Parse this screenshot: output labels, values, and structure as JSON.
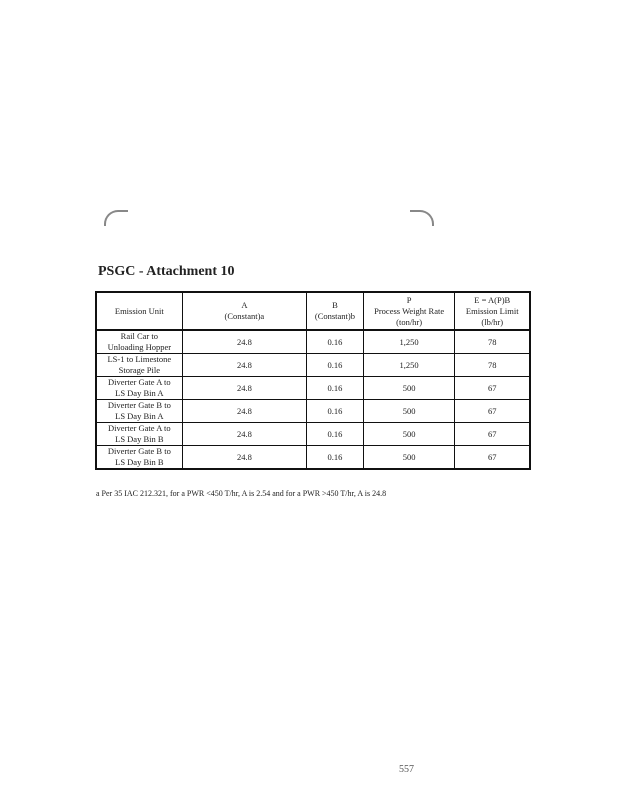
{
  "title": "PSGC - Attachment 10",
  "table": {
    "headers": [
      [
        "Emission Unit"
      ],
      [
        "A",
        "(Constant)a"
      ],
      [
        "B",
        "(Constant)b"
      ],
      [
        "P",
        "Process Weight Rate",
        "(ton/hr)"
      ],
      [
        "E = A(P)B",
        "Emission Limit",
        "(lb/hr)"
      ]
    ],
    "rows": [
      [
        "Rail Car to",
        "Unloading Hopper",
        "24.8",
        "0.16",
        "1,250",
        "78"
      ],
      [
        "LS-1 to Limestone",
        "Storage Pile",
        "24.8",
        "0.16",
        "1,250",
        "78"
      ],
      [
        "Diverter Gate A to",
        "LS Day Bin A",
        "24.8",
        "0.16",
        "500",
        "67"
      ],
      [
        "Diverter Gate B to",
        "LS Day Bin A",
        "24.8",
        "0.16",
        "500",
        "67"
      ],
      [
        "Diverter Gate A to",
        "LS Day Bin B",
        "24.8",
        "0.16",
        "500",
        "67"
      ],
      [
        "Diverter Gate B to",
        "LS Day Bin B",
        "24.8",
        "0.16",
        "500",
        "67"
      ]
    ]
  },
  "footnote": "a Per 35 IAC 212.321, for a PWR <450 T/hr, A is 2.54 and for a PWR >450 T/hr, A is 24.8",
  "page_number": "557"
}
